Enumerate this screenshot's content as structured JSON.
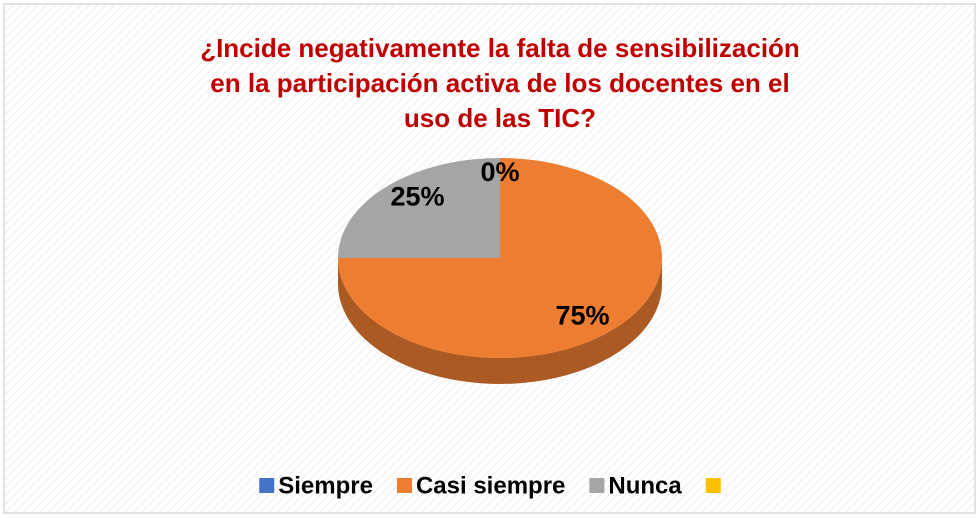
{
  "chart_data": {
    "type": "pie",
    "title": [
      "¿Incide negativamente la falta de sensibilización",
      "en la participación activa de los docentes en el",
      "uso de las TIC?"
    ],
    "categories": [
      "Siempre",
      "Casi siempre",
      "Nunca",
      null
    ],
    "values": [
      0,
      75,
      25,
      0
    ],
    "value_labels": [
      "0%",
      "75%",
      "25%",
      null
    ],
    "colors": [
      "#4472c4",
      "#ed7d31",
      "#a5a5a5",
      "#ffc000"
    ],
    "legend": "bottom"
  }
}
